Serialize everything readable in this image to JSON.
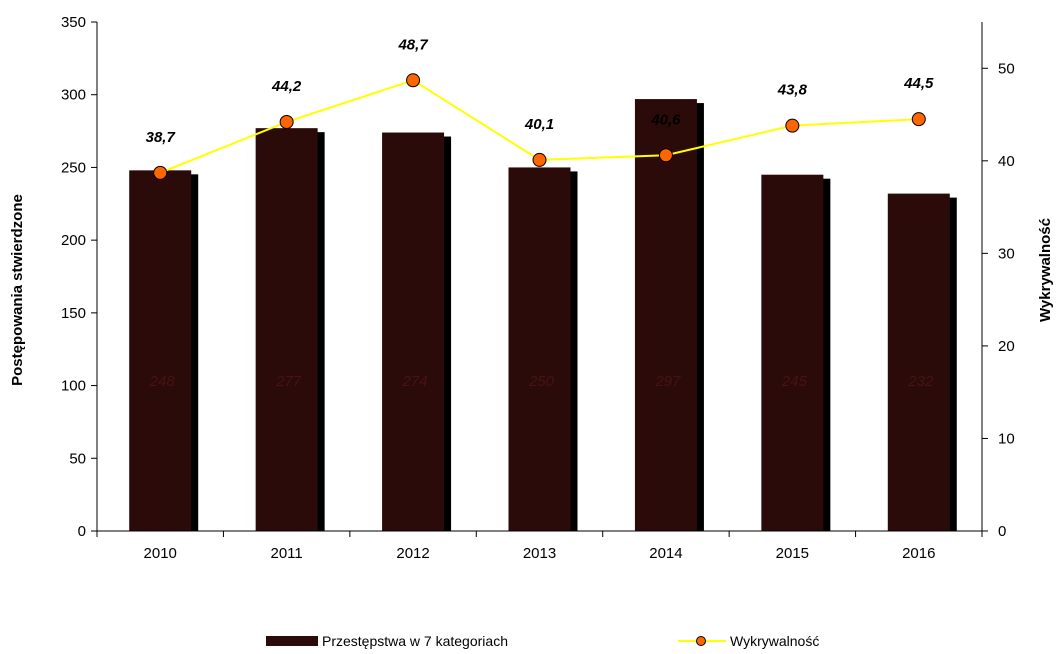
{
  "chart_data": {
    "type": "bar+line",
    "categories": [
      "2010",
      "2011",
      "2012",
      "2013",
      "2014",
      "2015",
      "2016"
    ],
    "series": [
      {
        "name": "Przestępstwa w 7 kategoriach",
        "type": "bar",
        "axis": "left",
        "values": [
          248,
          277,
          274,
          250,
          297,
          245,
          232
        ],
        "labels": [
          "248",
          "277",
          "274",
          "250",
          "297",
          "245",
          "232"
        ],
        "color": "#2b0a0a"
      },
      {
        "name": "Wykrywalność",
        "type": "line",
        "axis": "right",
        "values": [
          38.7,
          44.2,
          48.7,
          40.1,
          40.6,
          43.8,
          44.5
        ],
        "labels": [
          "38,7",
          "44,2",
          "48,7",
          "40,1",
          "40,6",
          "43,8",
          "44,5"
        ],
        "color": "#ffff00",
        "marker_color": "#ff6600"
      }
    ],
    "ylabel_left": "Postępowania stwierdzone",
    "ylabel_right": "Wykrywalność",
    "ylim_left": [
      0,
      350
    ],
    "yticks_left": [
      "0",
      "50",
      "100",
      "150",
      "200",
      "250",
      "300",
      "350"
    ],
    "ylim_right": [
      0,
      55
    ],
    "yticks_right": [
      "0",
      "10",
      "20",
      "30",
      "40",
      "50"
    ],
    "grid": false,
    "legend_position": "bottom"
  }
}
